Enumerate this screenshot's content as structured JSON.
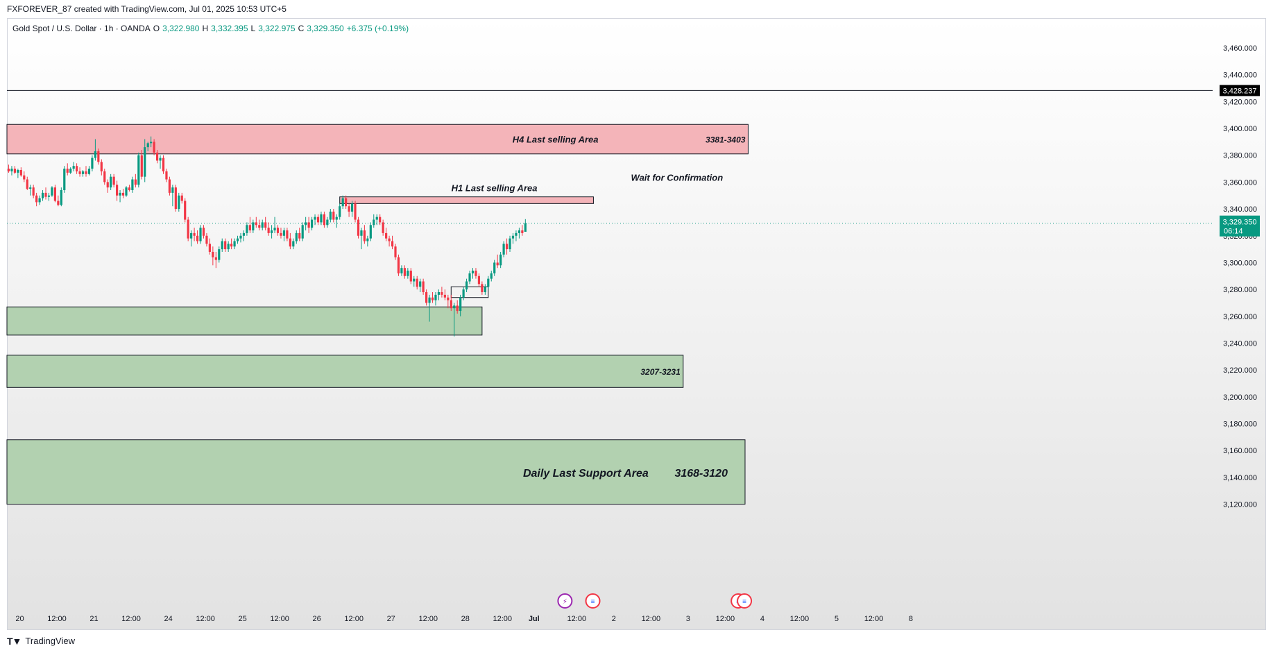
{
  "header": {
    "attribution": "FXFOREVER_87 created with TradingView.com, Jul 01, 2025 10:53 UTC+5"
  },
  "legend": {
    "symbol": "Gold Spot / U.S. Dollar · 1h · OANDA",
    "o_label": "O",
    "o_value": "3,322.980",
    "h_label": "H",
    "h_value": "3,332.395",
    "l_label": "L",
    "l_value": "3,322.975",
    "c_label": "C",
    "c_value": "3,329.350",
    "change": "+6.375 (+0.19%)"
  },
  "footer": {
    "logo_text": "TradingView"
  },
  "colors": {
    "up": "#089981",
    "down": "#f23645",
    "sell_zone": "#f4b4b9",
    "buy_zone": "#b2d1b0",
    "price_tag": "#089981",
    "level_tag": "#000000"
  },
  "chart_data": {
    "type": "candlestick",
    "symbol": "XAUUSD",
    "timeframe": "1h",
    "ylim": [
      3110,
      3475
    ],
    "yticks": [
      "3,460.000",
      "3,440.000",
      "3,420.000",
      "3,400.000",
      "3,380.000",
      "3,360.000",
      "3,340.000",
      "3,320.000",
      "3,300.000",
      "3,280.000",
      "3,260.000",
      "3,240.000",
      "3,220.000",
      "3,200.000",
      "3,180.000",
      "3,160.000",
      "3,140.000",
      "3,120.000"
    ],
    "yticks_values": [
      3460,
      3440,
      3420,
      3400,
      3380,
      3360,
      3340,
      3320,
      3300,
      3280,
      3260,
      3240,
      3220,
      3200,
      3180,
      3160,
      3140,
      3120
    ],
    "xticks": [
      {
        "label": "20",
        "t": 0
      },
      {
        "label": "12:00",
        "t": 12
      },
      {
        "label": "21",
        "t": 24
      },
      {
        "label": "12:00",
        "t": 36
      },
      {
        "label": "24",
        "t": 48
      },
      {
        "label": "12:00",
        "t": 60
      },
      {
        "label": "25",
        "t": 72
      },
      {
        "label": "12:00",
        "t": 84
      },
      {
        "label": "26",
        "t": 96
      },
      {
        "label": "12:00",
        "t": 108
      },
      {
        "label": "27",
        "t": 120
      },
      {
        "label": "12:00",
        "t": 132
      },
      {
        "label": "28",
        "t": 144
      },
      {
        "label": "12:00",
        "t": 156
      },
      {
        "label": "Jul",
        "t": 168
      },
      {
        "label": "12:00",
        "t": 180
      },
      {
        "label": "2",
        "t": 192
      },
      {
        "label": "12:00",
        "t": 204
      },
      {
        "label": "3",
        "t": 216
      },
      {
        "label": "12:00",
        "t": 228
      },
      {
        "label": "4",
        "t": 240
      },
      {
        "label": "12:00",
        "t": 252
      },
      {
        "label": "5",
        "t": 264
      },
      {
        "label": "12:00",
        "t": 276
      },
      {
        "label": "8",
        "t": 288
      }
    ],
    "horizontal_line": {
      "value": 3428.237,
      "label": "3,428.237"
    },
    "last_price": {
      "value": 3329.35,
      "label": "3,329.350",
      "countdown": "06:14"
    },
    "zones": [
      {
        "kind": "sell",
        "t_start": -2,
        "t_end": 239,
        "low": 3381,
        "high": 3403,
        "text": "H4 Last selling Area",
        "range_text": "3381-3403"
      },
      {
        "kind": "sell",
        "t_start": 107,
        "t_end": 189,
        "low": 3344,
        "high": 3349,
        "text": "H1 Last selling Area",
        "range_text": ""
      },
      {
        "kind": "buy",
        "t_start": -2,
        "t_end": 153,
        "low": 3246,
        "high": 3267,
        "text": "",
        "range_text": ""
      },
      {
        "kind": "buy",
        "t_start": -2,
        "t_end": 218,
        "low": 3207,
        "high": 3231,
        "text": "",
        "range_text": "3207-3231"
      },
      {
        "kind": "buy",
        "t_start": -2,
        "t_end": 238,
        "low": 3120,
        "high": 3168,
        "text": "Daily Last Support Area",
        "range_text": "3168-3120"
      }
    ],
    "annotations": [
      {
        "text": "Wait for Confirmation",
        "t": 216,
        "y": 3361
      }
    ],
    "small_box": {
      "t_start": 143,
      "t_end": 155,
      "low": 3274,
      "high": 3282
    },
    "event_markers": [
      {
        "t": 178,
        "icon": "flash-event-icon"
      },
      {
        "t": 187,
        "icon": "us-flag-event-icon"
      },
      {
        "t": 234,
        "icon": "us-flag-event-icon"
      },
      {
        "t": 236,
        "icon": "us-flag-event-icon"
      }
    ],
    "candles": [
      [
        0,
        3370,
        3373,
        3367,
        3368
      ],
      [
        1,
        3368,
        3372,
        3365,
        3370
      ],
      [
        2,
        3370,
        3372,
        3366,
        3367
      ],
      [
        3,
        3367,
        3370,
        3363,
        3369
      ],
      [
        4,
        3369,
        3371,
        3364,
        3365
      ],
      [
        5,
        3365,
        3368,
        3360,
        3362
      ],
      [
        6,
        3362,
        3364,
        3354,
        3355
      ],
      [
        7,
        3355,
        3358,
        3350,
        3356
      ],
      [
        8,
        3356,
        3358,
        3348,
        3350
      ],
      [
        9,
        3350,
        3352,
        3342,
        3345
      ],
      [
        10,
        3345,
        3350,
        3343,
        3348
      ],
      [
        11,
        3348,
        3354,
        3346,
        3352
      ],
      [
        12,
        3352,
        3356,
        3347,
        3349
      ],
      [
        13,
        3349,
        3352,
        3346,
        3350
      ],
      [
        14,
        3350,
        3357,
        3349,
        3356
      ],
      [
        15,
        3356,
        3358,
        3345,
        3346
      ],
      [
        16,
        3346,
        3350,
        3342,
        3343
      ],
      [
        17,
        3343,
        3356,
        3342,
        3354
      ],
      [
        18,
        3354,
        3372,
        3352,
        3370
      ],
      [
        19,
        3370,
        3374,
        3365,
        3367
      ],
      [
        20,
        3367,
        3371,
        3366,
        3370
      ],
      [
        21,
        3370,
        3375,
        3368,
        3372
      ],
      [
        22,
        3372,
        3374,
        3366,
        3368
      ],
      [
        23,
        3368,
        3371,
        3364,
        3366
      ],
      [
        24,
        3366,
        3369,
        3364,
        3368
      ],
      [
        25,
        3368,
        3372,
        3364,
        3366
      ],
      [
        26,
        3366,
        3372,
        3365,
        3370
      ],
      [
        27,
        3370,
        3380,
        3368,
        3378
      ],
      [
        28,
        3378,
        3392,
        3376,
        3383
      ],
      [
        29,
        3383,
        3385,
        3373,
        3375
      ],
      [
        30,
        3375,
        3377,
        3365,
        3368
      ],
      [
        31,
        3368,
        3370,
        3358,
        3360
      ],
      [
        32,
        3360,
        3362,
        3352,
        3356
      ],
      [
        33,
        3356,
        3366,
        3354,
        3364
      ],
      [
        34,
        3364,
        3366,
        3356,
        3358
      ],
      [
        35,
        3358,
        3361,
        3346,
        3350
      ],
      [
        36,
        3350,
        3354,
        3345,
        3352
      ],
      [
        37,
        3352,
        3355,
        3348,
        3350
      ],
      [
        38,
        3350,
        3357,
        3349,
        3356
      ],
      [
        39,
        3356,
        3358,
        3353,
        3354
      ],
      [
        40,
        3354,
        3364,
        3352,
        3362
      ],
      [
        41,
        3362,
        3366,
        3356,
        3358
      ],
      [
        42,
        3358,
        3382,
        3356,
        3380
      ],
      [
        43,
        3380,
        3384,
        3362,
        3364
      ],
      [
        44,
        3364,
        3392,
        3360,
        3386
      ],
      [
        45,
        3386,
        3390,
        3383,
        3389
      ],
      [
        46,
        3389,
        3394,
        3386,
        3390
      ],
      [
        47,
        3390,
        3392,
        3380,
        3382
      ],
      [
        48,
        3382,
        3384,
        3374,
        3376
      ],
      [
        49,
        3376,
        3380,
        3370,
        3378
      ],
      [
        50,
        3378,
        3380,
        3366,
        3368
      ],
      [
        51,
        3368,
        3370,
        3360,
        3362
      ],
      [
        52,
        3362,
        3364,
        3350,
        3352
      ],
      [
        53,
        3352,
        3358,
        3342,
        3356
      ],
      [
        54,
        3356,
        3358,
        3338,
        3340
      ],
      [
        55,
        3340,
        3352,
        3338,
        3350
      ],
      [
        56,
        3350,
        3352,
        3344,
        3346
      ],
      [
        57,
        3346,
        3348,
        3330,
        3332
      ],
      [
        58,
        3332,
        3334,
        3316,
        3318
      ],
      [
        59,
        3318,
        3324,
        3312,
        3322
      ],
      [
        60,
        3322,
        3326,
        3316,
        3320
      ],
      [
        61,
        3320,
        3324,
        3314,
        3316
      ],
      [
        62,
        3316,
        3328,
        3314,
        3326
      ],
      [
        63,
        3326,
        3328,
        3318,
        3320
      ],
      [
        64,
        3320,
        3322,
        3312,
        3314
      ],
      [
        65,
        3314,
        3318,
        3306,
        3308
      ],
      [
        66,
        3308,
        3312,
        3298,
        3304
      ],
      [
        67,
        3304,
        3308,
        3296,
        3302
      ],
      [
        68,
        3302,
        3312,
        3300,
        3310
      ],
      [
        69,
        3310,
        3318,
        3308,
        3316
      ],
      [
        70,
        3316,
        3318,
        3308,
        3310
      ],
      [
        71,
        3310,
        3316,
        3308,
        3314
      ],
      [
        72,
        3314,
        3318,
        3310,
        3312
      ],
      [
        73,
        3312,
        3318,
        3310,
        3316
      ],
      [
        74,
        3316,
        3320,
        3314,
        3318
      ],
      [
        75,
        3318,
        3322,
        3315,
        3320
      ],
      [
        76,
        3320,
        3324,
        3316,
        3322
      ],
      [
        77,
        3322,
        3330,
        3320,
        3328
      ],
      [
        78,
        3328,
        3334,
        3322,
        3324
      ],
      [
        79,
        3324,
        3332,
        3322,
        3330
      ],
      [
        80,
        3330,
        3334,
        3326,
        3328
      ],
      [
        81,
        3328,
        3332,
        3324,
        3326
      ],
      [
        82,
        3326,
        3332,
        3324,
        3330
      ],
      [
        83,
        3330,
        3334,
        3324,
        3326
      ],
      [
        84,
        3326,
        3330,
        3320,
        3322
      ],
      [
        85,
        3322,
        3328,
        3318,
        3324
      ],
      [
        86,
        3324,
        3334,
        3322,
        3326
      ],
      [
        87,
        3326,
        3328,
        3320,
        3322
      ],
      [
        88,
        3322,
        3326,
        3318,
        3320
      ],
      [
        89,
        3320,
        3326,
        3316,
        3324
      ],
      [
        90,
        3324,
        3326,
        3316,
        3318
      ],
      [
        91,
        3318,
        3322,
        3310,
        3312
      ],
      [
        92,
        3312,
        3318,
        3310,
        3316
      ],
      [
        93,
        3316,
        3324,
        3314,
        3322
      ],
      [
        94,
        3322,
        3326,
        3316,
        3318
      ],
      [
        95,
        3318,
        3330,
        3316,
        3328
      ],
      [
        96,
        3328,
        3334,
        3324,
        3330
      ],
      [
        97,
        3330,
        3334,
        3322,
        3326
      ],
      [
        98,
        3326,
        3334,
        3324,
        3332
      ],
      [
        99,
        3332,
        3336,
        3328,
        3334
      ],
      [
        100,
        3334,
        3336,
        3328,
        3330
      ],
      [
        101,
        3330,
        3338,
        3328,
        3336
      ],
      [
        102,
        3336,
        3338,
        3326,
        3328
      ],
      [
        103,
        3328,
        3334,
        3326,
        3332
      ],
      [
        104,
        3332,
        3340,
        3330,
        3338
      ],
      [
        105,
        3338,
        3340,
        3330,
        3332
      ],
      [
        106,
        3332,
        3336,
        3326,
        3334
      ],
      [
        107,
        3334,
        3344,
        3332,
        3342
      ],
      [
        108,
        3342,
        3350,
        3340,
        3348
      ],
      [
        109,
        3348,
        3350,
        3340,
        3342
      ],
      [
        110,
        3342,
        3344,
        3334,
        3338
      ],
      [
        111,
        3338,
        3346,
        3334,
        3344
      ],
      [
        112,
        3344,
        3346,
        3330,
        3332
      ],
      [
        113,
        3332,
        3334,
        3318,
        3320
      ],
      [
        114,
        3320,
        3326,
        3310,
        3324
      ],
      [
        115,
        3324,
        3328,
        3314,
        3316
      ],
      [
        116,
        3316,
        3320,
        3312,
        3318
      ],
      [
        117,
        3318,
        3330,
        3316,
        3328
      ],
      [
        118,
        3328,
        3336,
        3326,
        3332
      ],
      [
        119,
        3332,
        3336,
        3328,
        3334
      ],
      [
        120,
        3334,
        3336,
        3328,
        3330
      ],
      [
        121,
        3330,
        3332,
        3320,
        3322
      ],
      [
        122,
        3322,
        3326,
        3316,
        3318
      ],
      [
        123,
        3318,
        3320,
        3312,
        3316
      ],
      [
        124,
        3316,
        3320,
        3310,
        3312
      ],
      [
        125,
        3312,
        3314,
        3302,
        3304
      ],
      [
        126,
        3304,
        3306,
        3290,
        3292
      ],
      [
        127,
        3292,
        3298,
        3290,
        3296
      ],
      [
        128,
        3296,
        3298,
        3288,
        3290
      ],
      [
        129,
        3290,
        3296,
        3288,
        3294
      ],
      [
        130,
        3294,
        3296,
        3284,
        3286
      ],
      [
        131,
        3286,
        3290,
        3282,
        3288
      ],
      [
        132,
        3288,
        3290,
        3280,
        3282
      ],
      [
        133,
        3282,
        3288,
        3278,
        3286
      ],
      [
        134,
        3286,
        3288,
        3276,
        3278
      ],
      [
        135,
        3278,
        3280,
        3268,
        3270
      ],
      [
        136,
        3270,
        3276,
        3256,
        3274
      ],
      [
        137,
        3274,
        3278,
        3270,
        3272
      ],
      [
        138,
        3272,
        3278,
        3268,
        3276
      ],
      [
        139,
        3276,
        3280,
        3272,
        3278
      ],
      [
        140,
        3278,
        3282,
        3274,
        3276
      ],
      [
        141,
        3276,
        3280,
        3272,
        3274
      ],
      [
        142,
        3274,
        3276,
        3266,
        3272
      ],
      [
        143,
        3272,
        3276,
        3264,
        3266
      ],
      [
        144,
        3266,
        3270,
        3245,
        3268
      ],
      [
        145,
        3268,
        3272,
        3262,
        3264
      ],
      [
        146,
        3264,
        3276,
        3260,
        3274
      ],
      [
        147,
        3274,
        3282,
        3272,
        3280
      ],
      [
        148,
        3280,
        3288,
        3278,
        3286
      ],
      [
        149,
        3286,
        3294,
        3284,
        3292
      ],
      [
        150,
        3292,
        3296,
        3288,
        3294
      ],
      [
        151,
        3294,
        3296,
        3288,
        3290
      ],
      [
        152,
        3290,
        3292,
        3282,
        3284
      ],
      [
        153,
        3284,
        3286,
        3276,
        3278
      ],
      [
        154,
        3278,
        3284,
        3276,
        3282
      ],
      [
        155,
        3282,
        3290,
        3280,
        3288
      ],
      [
        156,
        3288,
        3294,
        3286,
        3292
      ],
      [
        157,
        3292,
        3302,
        3290,
        3300
      ],
      [
        158,
        3300,
        3306,
        3296,
        3298
      ],
      [
        159,
        3298,
        3308,
        3296,
        3306
      ],
      [
        160,
        3306,
        3316,
        3304,
        3314
      ],
      [
        161,
        3314,
        3318,
        3306,
        3310
      ],
      [
        162,
        3310,
        3320,
        3308,
        3318
      ],
      [
        163,
        3318,
        3322,
        3314,
        3320
      ],
      [
        164,
        3320,
        3324,
        3316,
        3322
      ],
      [
        165,
        3322,
        3326,
        3318,
        3324
      ],
      [
        166,
        3324,
        3328,
        3320,
        3322
      ],
      [
        167,
        3322.98,
        3332.395,
        3322.975,
        3329.35
      ]
    ]
  }
}
